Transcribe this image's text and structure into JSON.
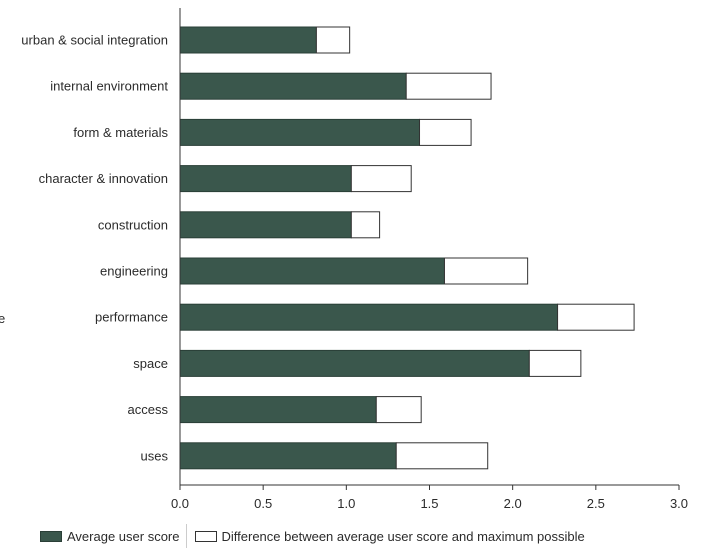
{
  "chart_data": {
    "type": "bar",
    "orientation": "horizontal",
    "stacked": true,
    "categories": [
      "urban & social integration",
      "internal environment",
      "form & materials",
      "character & innovation",
      "construction",
      "engineering",
      "performance",
      "space",
      "access",
      "uses"
    ],
    "series": [
      {
        "name": "Average user score",
        "color": "#3a574c",
        "values": [
          0.82,
          1.36,
          1.44,
          1.03,
          1.03,
          1.59,
          2.27,
          2.1,
          1.18,
          1.3
        ]
      },
      {
        "name": "Difference between average user score and maximum possible",
        "color": "#ffffff",
        "values": [
          0.2,
          0.51,
          0.31,
          0.36,
          0.17,
          0.5,
          0.46,
          0.31,
          0.27,
          0.55
        ]
      }
    ],
    "x_ticks": [
      "0.0",
      "0.5",
      "1.0",
      "1.5",
      "2.0",
      "2.5",
      "3.0"
    ],
    "xlim": [
      0,
      3
    ],
    "grid": false,
    "legend_position": "bottom",
    "partial_ylabel": "e"
  }
}
